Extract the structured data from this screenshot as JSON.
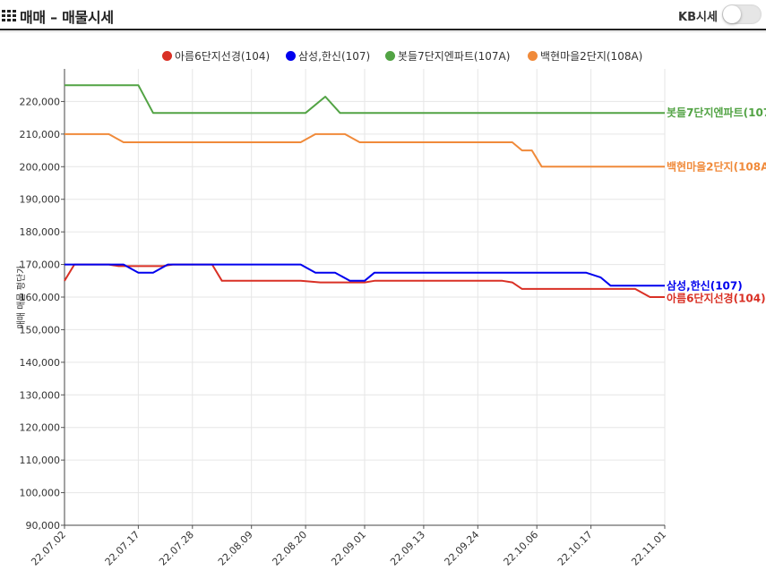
{
  "header": {
    "title": "매매 – 매물시세",
    "toggle_label": "KB시세",
    "kb_toggle_on": false
  },
  "chart_data": {
    "type": "line",
    "title": "",
    "xlabel": "",
    "ylabel": "매매 매물 평단가",
    "ylim": [
      90000,
      230000
    ],
    "y_ticks": [
      90000,
      100000,
      110000,
      120000,
      130000,
      140000,
      150000,
      160000,
      170000,
      180000,
      190000,
      200000,
      210000,
      220000
    ],
    "x_tick_labels": [
      "22.07.02",
      "22.07.17",
      "22.07.28",
      "22.08.09",
      "22.08.20",
      "22.09.01",
      "22.09.13",
      "22.09.24",
      "22.10.06",
      "22.10.17",
      "22.11.01"
    ],
    "x_range": [
      "2022-07-02",
      "2022-11-01"
    ],
    "grid": true,
    "legend_position": "top",
    "series": [
      {
        "name": "아름6단지선경(104)",
        "end_label": "아름6단지선경(104)",
        "color": "#d93025",
        "points": [
          [
            "2022-07-02",
            165000
          ],
          [
            "2022-07-04",
            170000
          ],
          [
            "2022-07-11",
            170000
          ],
          [
            "2022-07-13",
            169500
          ],
          [
            "2022-07-22",
            169500
          ],
          [
            "2022-07-24",
            170000
          ],
          [
            "2022-08-01",
            170000
          ],
          [
            "2022-08-03",
            165000
          ],
          [
            "2022-08-19",
            165000
          ],
          [
            "2022-08-23",
            164500
          ],
          [
            "2022-09-01",
            164500
          ],
          [
            "2022-09-03",
            165000
          ],
          [
            "2022-09-29",
            165000
          ],
          [
            "2022-10-01",
            164500
          ],
          [
            "2022-10-03",
            162500
          ],
          [
            "2022-10-26",
            162500
          ],
          [
            "2022-10-29",
            160000
          ],
          [
            "2022-11-01",
            160000
          ]
        ]
      },
      {
        "name": "삼성,한신(107)",
        "end_label": "삼성,한신(107)",
        "color": "#0000ee",
        "points": [
          [
            "2022-07-02",
            170000
          ],
          [
            "2022-07-14",
            170000
          ],
          [
            "2022-07-17",
            167500
          ],
          [
            "2022-07-20",
            167500
          ],
          [
            "2022-07-23",
            170000
          ],
          [
            "2022-08-19",
            170000
          ],
          [
            "2022-08-22",
            167500
          ],
          [
            "2022-08-26",
            167500
          ],
          [
            "2022-08-29",
            165000
          ],
          [
            "2022-09-01",
            165000
          ],
          [
            "2022-09-03",
            167500
          ],
          [
            "2022-10-16",
            167500
          ],
          [
            "2022-10-19",
            166000
          ],
          [
            "2022-10-21",
            163500
          ],
          [
            "2022-11-01",
            163500
          ]
        ]
      },
      {
        "name": "봇들7단지엔파트(107A)",
        "end_label": "봇들7단지엔파트(107",
        "color": "#52a344",
        "points": [
          [
            "2022-07-02",
            225000
          ],
          [
            "2022-07-17",
            225000
          ],
          [
            "2022-07-20",
            216500
          ],
          [
            "2022-08-20",
            216500
          ],
          [
            "2022-08-24",
            221500
          ],
          [
            "2022-08-27",
            216500
          ],
          [
            "2022-11-01",
            216500
          ]
        ]
      },
      {
        "name": "백현마을2단지(108A)",
        "end_label": "백현마을2단지(108A",
        "color": "#f08a3a",
        "points": [
          [
            "2022-07-02",
            210000
          ],
          [
            "2022-07-11",
            210000
          ],
          [
            "2022-07-14",
            207500
          ],
          [
            "2022-08-19",
            207500
          ],
          [
            "2022-08-22",
            210000
          ],
          [
            "2022-08-28",
            210000
          ],
          [
            "2022-08-31",
            207500
          ],
          [
            "2022-10-01",
            207500
          ],
          [
            "2022-10-03",
            205000
          ],
          [
            "2022-10-05",
            205000
          ],
          [
            "2022-10-07",
            200000
          ],
          [
            "2022-11-01",
            200000
          ]
        ]
      }
    ]
  }
}
